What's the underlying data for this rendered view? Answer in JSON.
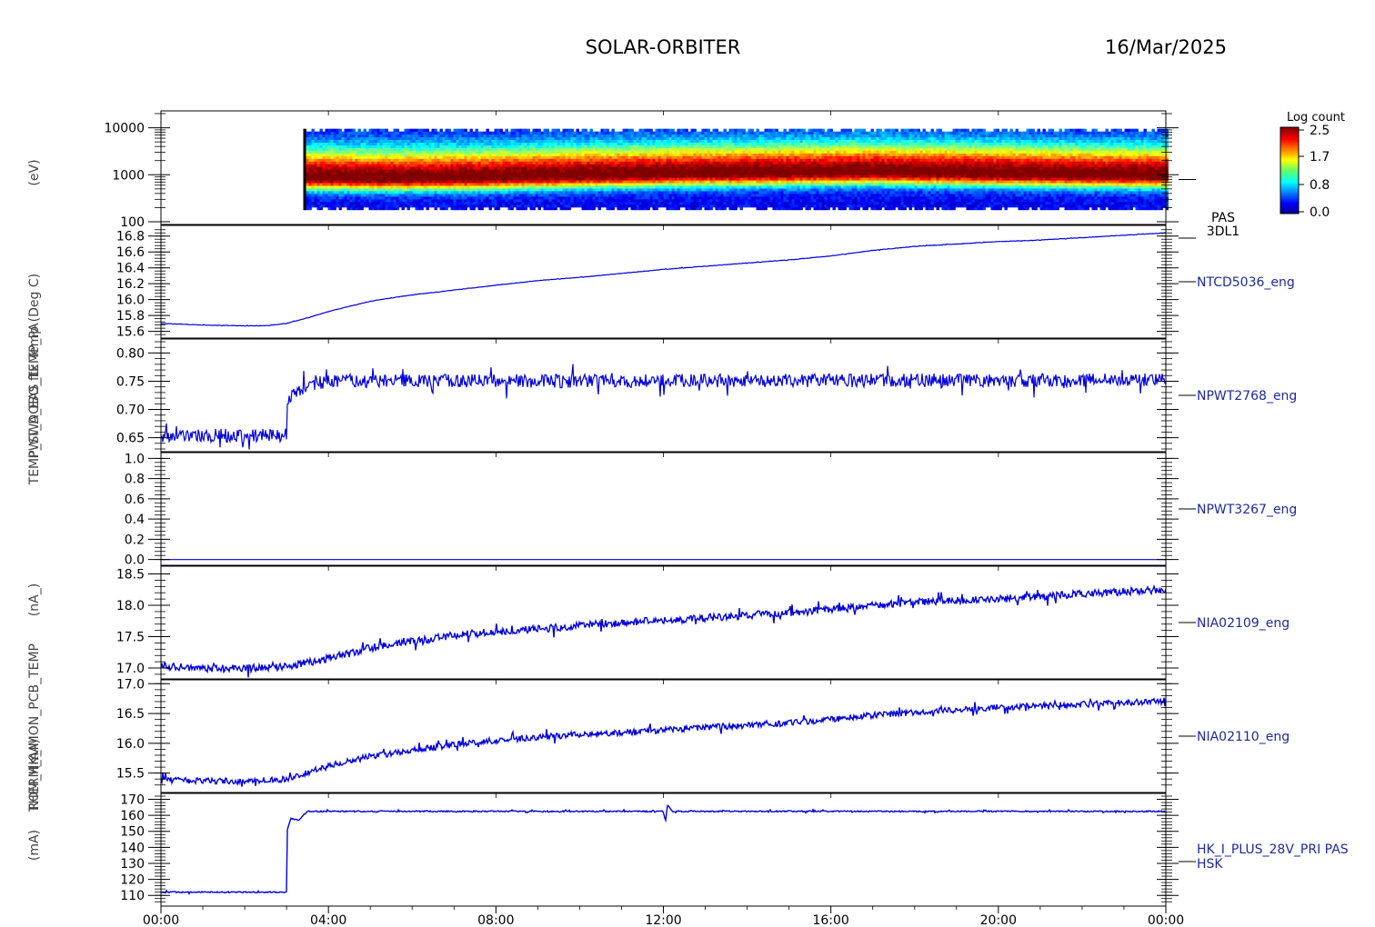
{
  "title": "SOLAR-ORBITER",
  "date": "16/Mar/2025",
  "colorbar": {
    "label": "Log count",
    "ticks": [
      "2.5",
      "1.7",
      "0.8",
      "0.0"
    ]
  },
  "rotated_labels": [
    "(eV)",
    "ftx Temp (Deg C)",
    "PWT_DOBO_TEMP_PA",
    "TEMP_SWA_EAS_1",
    "(nA_)",
    "(mA)",
    "ROM_HK_IMON_PCB_TEMP",
    "THERM_A",
    "(mA)"
  ],
  "chart_data": {
    "type": "line",
    "x_axis": {
      "label": "",
      "ticks": [
        "00:00",
        "04:00",
        "08:00",
        "12:00",
        "16:00",
        "20:00",
        "00:00"
      ],
      "range_hours": [
        0,
        24
      ]
    },
    "panels": [
      {
        "type": "heatmap",
        "name": "PAS",
        "name2": "3DL1",
        "ylabel": "(eV)",
        "scale": "log",
        "ylim": [
          100,
          20000
        ],
        "yticks": [
          "10000",
          "1000",
          "100"
        ],
        "data_start_hour": 3.4,
        "data_end_hour": 24,
        "peak_energy_eV": [
          880,
          870,
          860,
          850,
          860,
          870,
          880,
          900,
          930,
          950,
          980,
          1000,
          1020,
          1040,
          1060,
          1070,
          1080,
          1100,
          1120,
          1130,
          1150,
          1140,
          1120,
          1100,
          1080,
          1060,
          1040,
          1020,
          1000,
          990,
          980,
          970
        ],
        "color_range": [
          0.0,
          2.5
        ]
      },
      {
        "type": "line",
        "name": "NTCD5036_eng",
        "ylabel": "ftx Temp (Deg C)",
        "ylim": [
          15.55,
          16.9
        ],
        "yticks": [
          "16.8",
          "16.6",
          "16.4",
          "16.2",
          "16.0",
          "15.8",
          "15.6"
        ],
        "x_hours": [
          0,
          1,
          2,
          2.5,
          3,
          3.5,
          4,
          5,
          6,
          7,
          8,
          9,
          10,
          11,
          12,
          13,
          14,
          15,
          16,
          17,
          18,
          19,
          20,
          21,
          22,
          23,
          24
        ],
        "values": [
          15.7,
          15.68,
          15.67,
          15.67,
          15.7,
          15.77,
          15.85,
          15.98,
          16.06,
          16.12,
          16.18,
          16.24,
          16.28,
          16.33,
          16.38,
          16.42,
          16.46,
          16.5,
          16.55,
          16.62,
          16.67,
          16.7,
          16.73,
          16.75,
          16.78,
          16.81,
          16.84
        ],
        "noise": 0.003
      },
      {
        "type": "line",
        "name": "NPWT2768_eng",
        "ylabel": "PWT_DOBO_TEMP_PA",
        "ylim": [
          0.63,
          0.82
        ],
        "yticks": [
          "0.80",
          "0.75",
          "0.70",
          "0.65"
        ],
        "x_hours": [
          0,
          3,
          3.01,
          3.3,
          3.8,
          4.5,
          24
        ],
        "values": [
          0.654,
          0.654,
          0.72,
          0.735,
          0.748,
          0.75,
          0.752
        ],
        "noise": 0.012
      },
      {
        "type": "line",
        "name": "NPWT3267_eng",
        "ylabel": "TEMP_SWA_EAS_1",
        "ylim": [
          -0.03,
          1.03
        ],
        "yticks": [
          "1.0",
          "0.8",
          "0.6",
          "0.4",
          "0.2",
          "0.0"
        ],
        "x_hours": [
          0,
          24
        ],
        "values": [
          0.0,
          0.0
        ],
        "noise": 0.0
      },
      {
        "type": "line",
        "name": "NIA02109_eng",
        "ylabel": "(nA_)",
        "ylim": [
          16.87,
          18.58
        ],
        "yticks": [
          "18.5",
          "18.0",
          "17.5",
          "17.0"
        ],
        "x_hours": [
          0,
          1,
          2,
          3,
          4,
          5,
          6,
          7,
          8,
          9,
          10,
          11,
          12,
          13,
          14,
          15,
          16,
          17,
          18,
          19,
          20,
          21,
          22,
          23,
          24
        ],
        "values": [
          17.03,
          17.0,
          16.99,
          17.03,
          17.15,
          17.32,
          17.42,
          17.52,
          17.58,
          17.62,
          17.68,
          17.72,
          17.76,
          17.8,
          17.84,
          17.88,
          17.93,
          17.99,
          18.05,
          18.08,
          18.1,
          18.14,
          18.18,
          18.22,
          18.25
        ],
        "noise": 0.06
      },
      {
        "type": "line",
        "name": "NIA02110_eng",
        "ylabel": "(mA)",
        "ylim": [
          15.22,
          17.02
        ],
        "yticks": [
          "17.0",
          "16.5",
          "16.0",
          "15.5"
        ],
        "x_hours": [
          0,
          1,
          2,
          3,
          4,
          5,
          6,
          7,
          8,
          9,
          10,
          11,
          12,
          13,
          14,
          15,
          16,
          17,
          18,
          19,
          20,
          21,
          22,
          23,
          24
        ],
        "values": [
          15.38,
          15.37,
          15.36,
          15.4,
          15.62,
          15.78,
          15.88,
          15.98,
          16.05,
          16.1,
          16.15,
          16.18,
          16.22,
          16.27,
          16.3,
          16.34,
          16.4,
          16.47,
          16.52,
          16.56,
          16.6,
          16.63,
          16.65,
          16.68,
          16.72
        ],
        "noise": 0.05
      },
      {
        "type": "line",
        "name": "HK_I_PLUS_28V_PRI PAS",
        "name2": "HSK",
        "ylabel": "(mA)",
        "ylim": [
          105,
          172
        ],
        "yticks": [
          "170",
          "160",
          "150",
          "140",
          "130",
          "120",
          "110"
        ],
        "x_hours": [
          0,
          3,
          3.01,
          3.1,
          3.3,
          3.5,
          12,
          12.05,
          12.1,
          12.2,
          12.4,
          24
        ],
        "values": [
          112,
          112,
          150,
          158,
          157,
          162.5,
          162.5,
          156,
          167,
          162.5,
          162.5,
          162.5
        ],
        "noise": 0.4
      }
    ]
  }
}
